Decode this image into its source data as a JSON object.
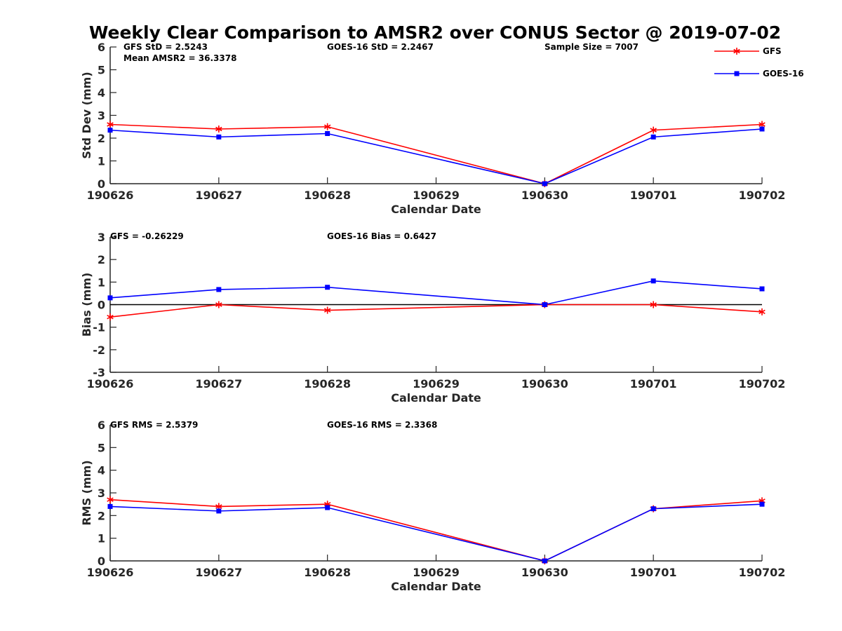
{
  "figure": {
    "title": "Weekly Clear Comparison to AMSR2 over CONUS Sector @ 2019-07-02"
  },
  "legend": {
    "entries": [
      {
        "name": "GFS",
        "color": "#ff0000",
        "marker": "asterisk"
      },
      {
        "name": "GOES-16",
        "color": "#0000ff",
        "marker": "square"
      }
    ]
  },
  "chart_data": [
    {
      "type": "line",
      "xlabel": "Calendar Date",
      "ylabel": "Std Dev (mm)",
      "x": [
        "190626",
        "190627",
        "190628",
        "190629",
        "190630",
        "190701",
        "190702"
      ],
      "ylim": [
        0,
        6
      ],
      "yticks": [
        0,
        1,
        2,
        3,
        4,
        5,
        6
      ],
      "zero_line": false,
      "annotations": [
        {
          "text": "GFS StD = 2.5243"
        },
        {
          "text": "GOES-16 StD = 2.2467"
        },
        {
          "text": "Sample Size = 7007"
        },
        {
          "text": "Mean AMSR2 = 36.3378"
        }
      ],
      "series": [
        {
          "name": "GFS",
          "color": "#ff0000",
          "points": [
            {
              "x": "190626",
              "y": 2.6
            },
            {
              "x": "190627",
              "y": 2.4
            },
            {
              "x": "190628",
              "y": 2.5
            },
            {
              "x": "190630",
              "y": 0.0
            },
            {
              "x": "190701",
              "y": 2.35
            },
            {
              "x": "190702",
              "y": 2.6
            }
          ]
        },
        {
          "name": "GOES-16",
          "color": "#0000ff",
          "points": [
            {
              "x": "190626",
              "y": 2.35
            },
            {
              "x": "190627",
              "y": 2.05
            },
            {
              "x": "190628",
              "y": 2.2
            },
            {
              "x": "190630",
              "y": 0.0
            },
            {
              "x": "190701",
              "y": 2.05
            },
            {
              "x": "190702",
              "y": 2.4
            }
          ]
        }
      ]
    },
    {
      "type": "line",
      "xlabel": "Calendar Date",
      "ylabel": "Bias (mm)",
      "x": [
        "190626",
        "190627",
        "190628",
        "190629",
        "190630",
        "190701",
        "190702"
      ],
      "ylim": [
        -3,
        3
      ],
      "yticks": [
        -3,
        -2,
        -1,
        0,
        1,
        2,
        3
      ],
      "zero_line": true,
      "annotations": [
        {
          "text": "GFS = -0.26229"
        },
        {
          "text": "GOES-16 Bias  = 0.6427"
        }
      ],
      "series": [
        {
          "name": "GFS",
          "color": "#ff0000",
          "points": [
            {
              "x": "190626",
              "y": -0.55
            },
            {
              "x": "190627",
              "y": 0.0
            },
            {
              "x": "190628",
              "y": -0.25
            },
            {
              "x": "190630",
              "y": 0.0
            },
            {
              "x": "190701",
              "y": 0.0
            },
            {
              "x": "190702",
              "y": -0.32
            }
          ]
        },
        {
          "name": "GOES-16",
          "color": "#0000ff",
          "points": [
            {
              "x": "190626",
              "y": 0.3
            },
            {
              "x": "190627",
              "y": 0.67
            },
            {
              "x": "190628",
              "y": 0.77
            },
            {
              "x": "190630",
              "y": 0.0
            },
            {
              "x": "190701",
              "y": 1.05
            },
            {
              "x": "190702",
              "y": 0.7
            }
          ]
        }
      ]
    },
    {
      "type": "line",
      "xlabel": "Calendar Date",
      "ylabel": "RMS (mm)",
      "x": [
        "190626",
        "190627",
        "190628",
        "190629",
        "190630",
        "190701",
        "190702"
      ],
      "ylim": [
        0,
        6
      ],
      "yticks": [
        0,
        1,
        2,
        3,
        4,
        5,
        6
      ],
      "zero_line": false,
      "annotations": [
        {
          "text": "GFS RMS = 2.5379"
        },
        {
          "text": "GOES-16 RMS = 2.3368"
        }
      ],
      "series": [
        {
          "name": "GFS",
          "color": "#ff0000",
          "points": [
            {
              "x": "190626",
              "y": 2.7
            },
            {
              "x": "190627",
              "y": 2.4
            },
            {
              "x": "190628",
              "y": 2.5
            },
            {
              "x": "190630",
              "y": 0.0
            },
            {
              "x": "190701",
              "y": 2.3
            },
            {
              "x": "190702",
              "y": 2.65
            }
          ]
        },
        {
          "name": "GOES-16",
          "color": "#0000ff",
          "points": [
            {
              "x": "190626",
              "y": 2.4
            },
            {
              "x": "190627",
              "y": 2.2
            },
            {
              "x": "190628",
              "y": 2.35
            },
            {
              "x": "190630",
              "y": 0.0
            },
            {
              "x": "190701",
              "y": 2.3
            },
            {
              "x": "190702",
              "y": 2.5
            }
          ]
        }
      ]
    }
  ]
}
